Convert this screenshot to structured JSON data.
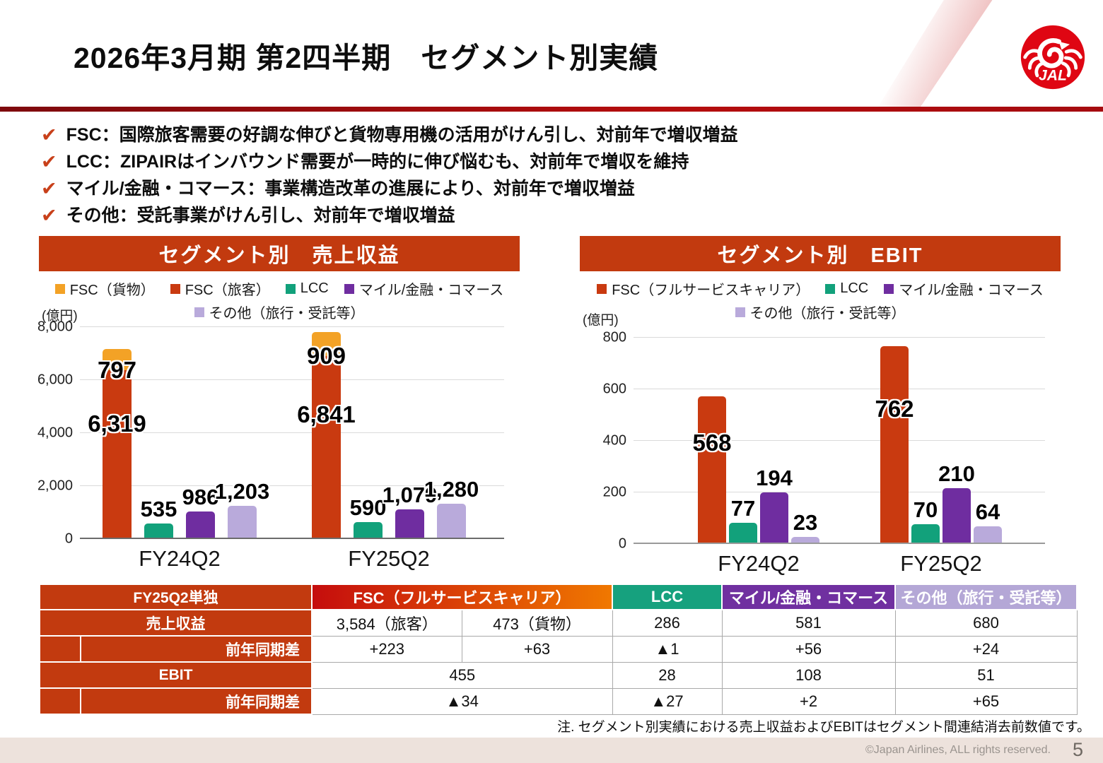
{
  "slide": {
    "title": "2026年3月期 第2四半期　セグメント別実績",
    "note": "注. セグメント別実績における売上収益およびEBITはセグメント間連結消去前数値です。",
    "copyright": "©Japan Airlines, ALL rights reserved.",
    "page_number": "5",
    "logo_text": "JAL"
  },
  "bullets": [
    {
      "text": "FSC：国際旅客需要の好調な伸びと貨物専用機の活用がけん引し、対前年で増収増益"
    },
    {
      "text": "LCC：ZIPAIRはインバウンド需要が一時的に伸び悩むも、対前年で増収を維持"
    },
    {
      "text": "マイル/金融・コマース：事業構造改革の進展により、対前年で増収増益"
    },
    {
      "text": "その他：受託事業がけん引し、対前年で増収増益"
    }
  ],
  "colors": {
    "accent_red": "#C23A0F",
    "fsc_cargo_orange": "#F3A226",
    "fsc_passenger_red": "#C93A10",
    "lcc_green": "#12A17B",
    "mile_purple": "#6F2DA0",
    "other_lilac": "#B9AADB",
    "fsc_header_gradient_start": "#C50D0D",
    "fsc_header_gradient_end": "#F07800",
    "divider_red": "#A50B0F",
    "footer_beige": "#EDE2DC",
    "logo_red": "#DF0613"
  },
  "chart_data": [
    {
      "type": "bar",
      "title": "セグメント別　売上収益",
      "unit": "(億円)",
      "ylim": [
        0,
        8000
      ],
      "yticks": [
        0,
        2000,
        4000,
        6000,
        8000
      ],
      "grid": true,
      "legend_position": "top",
      "categories": [
        "FY24Q2",
        "FY25Q2"
      ],
      "series": [
        {
          "name": "FSC（貨物）",
          "color": "#F3A226",
          "stack": "FSC",
          "label_pos": "boundary",
          "values": [
            797,
            909
          ]
        },
        {
          "name": "FSC（旅客）",
          "color": "#C93A10",
          "stack": "FSC",
          "label_pos": "inside",
          "values": [
            6319,
            6841
          ]
        },
        {
          "name": "LCC",
          "color": "#12A17B",
          "label_pos": "above",
          "values": [
            535,
            590
          ]
        },
        {
          "name": "マイル/金融・コマース",
          "color": "#6F2DA0",
          "label_pos": "above",
          "values": [
            986,
            1079
          ]
        },
        {
          "name": "その他（旅行・受託等）",
          "color": "#B9AADB",
          "label_pos": "above",
          "values": [
            1203,
            1280
          ]
        }
      ],
      "legend_rows": [
        [
          "FSC（貨物）",
          "FSC（旅客）",
          "LCC",
          "マイル/金融・コマース"
        ],
        [
          "その他（旅行・受託等）"
        ]
      ]
    },
    {
      "type": "bar",
      "title": "セグメント別　EBIT",
      "unit": "(億円)",
      "ylim": [
        0,
        800
      ],
      "yticks": [
        0,
        200,
        400,
        600,
        800
      ],
      "grid": true,
      "legend_position": "top",
      "categories": [
        "FY24Q2",
        "FY25Q2"
      ],
      "series": [
        {
          "name": "FSC（フルサービスキャリア）",
          "color": "#C93A10",
          "label_pos": "inside",
          "values": [
            568,
            762
          ]
        },
        {
          "name": "LCC",
          "color": "#12A17B",
          "label_pos": "above",
          "values": [
            77,
            70
          ]
        },
        {
          "name": "マイル/金融・コマース",
          "color": "#6F2DA0",
          "label_pos": "above",
          "values": [
            194,
            210
          ]
        },
        {
          "name": "その他（旅行・受託等）",
          "color": "#B9AADB",
          "label_pos": "above",
          "values": [
            23,
            64
          ]
        }
      ],
      "legend_rows": [
        [
          "FSC（フルサービスキャリア）",
          "LCC",
          "マイル/金融・コマース"
        ],
        [
          "その他（旅行・受託等）"
        ]
      ]
    }
  ],
  "table": {
    "corner_label": "FY25Q2単独",
    "column_headers": [
      {
        "label": "FSC（フルサービスキャリア）",
        "style": "fsc"
      },
      {
        "label": "LCC",
        "color": "#16A17E"
      },
      {
        "label": "マイル/金融・コマース",
        "color": "#7030A0"
      },
      {
        "label": "その他（旅行・受託等）",
        "color": "#B4A7D6"
      }
    ],
    "rows": [
      {
        "label": "売上収益",
        "indent": false,
        "fsc_merged": false,
        "cells": [
          "3,584（旅客）",
          "473（貨物）",
          "286",
          "581",
          "680"
        ]
      },
      {
        "label": "前年同期差",
        "indent": true,
        "fsc_merged": false,
        "cells": [
          "+223",
          "+63",
          "▲1",
          "+56",
          "+24"
        ]
      },
      {
        "label": "EBIT",
        "indent": false,
        "fsc_merged": true,
        "cells": [
          "455",
          "28",
          "108",
          "51"
        ]
      },
      {
        "label": "前年同期差",
        "indent": true,
        "fsc_merged": true,
        "cells": [
          "▲34",
          "▲27",
          "+2",
          "+65"
        ]
      }
    ]
  }
}
